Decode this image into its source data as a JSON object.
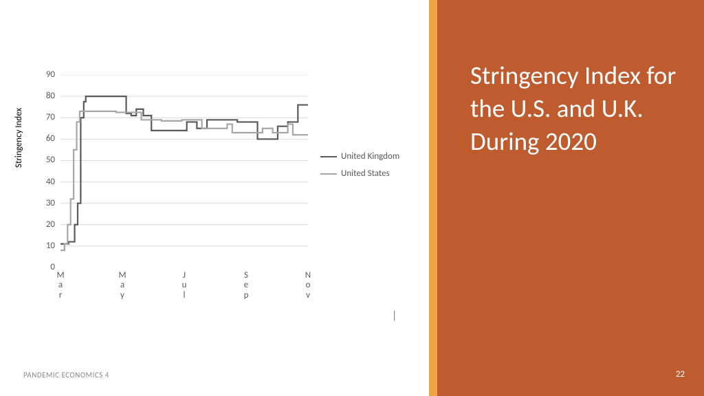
{
  "title": "Stringency Index for the U.S. and U.K. During 2020",
  "footer_left": "PANDEMIC ECONOMICS 4",
  "page_number": "22",
  "accent_color": "#f0a441",
  "panel_color": "#be5b2f",
  "footer_text_color": "#8a8a8a",
  "chart": {
    "type": "line-step",
    "y_axis_label": "Stringency Index",
    "background_color": "#ffffff",
    "grid_color": "#d9d9d9",
    "tick_color": "#595959",
    "tick_fontsize": 13,
    "label_fontsize": 13,
    "ylim": [
      0,
      90
    ],
    "ytick_step": 10,
    "y_ticks": [
      "0",
      "10",
      "20",
      "30",
      "40",
      "50",
      "60",
      "70",
      "80",
      "90"
    ],
    "x_labels": [
      "Mar",
      "May",
      "Jul",
      "Sep",
      "Nov"
    ],
    "x_min": 0,
    "x_max": 245,
    "line_width": 2.2,
    "series": [
      {
        "name": "United Kingdom",
        "color": "#595959",
        "points": [
          [
            0,
            11
          ],
          [
            8,
            11
          ],
          [
            8,
            12
          ],
          [
            14,
            12
          ],
          [
            14,
            20
          ],
          [
            17,
            20
          ],
          [
            17,
            30
          ],
          [
            20,
            30
          ],
          [
            20,
            70
          ],
          [
            23,
            70
          ],
          [
            23,
            77.5
          ],
          [
            25,
            77.5
          ],
          [
            25,
            80
          ],
          [
            65,
            80
          ],
          [
            65,
            72
          ],
          [
            70,
            72
          ],
          [
            70,
            71
          ],
          [
            75,
            71
          ],
          [
            75,
            74
          ],
          [
            82,
            74
          ],
          [
            82,
            71
          ],
          [
            90,
            71
          ],
          [
            90,
            64
          ],
          [
            125,
            64
          ],
          [
            125,
            68
          ],
          [
            135,
            68
          ],
          [
            135,
            65
          ],
          [
            145,
            65
          ],
          [
            145,
            69
          ],
          [
            175,
            69
          ],
          [
            175,
            68
          ],
          [
            195,
            68
          ],
          [
            195,
            60
          ],
          [
            215,
            60
          ],
          [
            215,
            66
          ],
          [
            225,
            66
          ],
          [
            225,
            68
          ],
          [
            235,
            68
          ],
          [
            235,
            76
          ],
          [
            245,
            76
          ]
        ]
      },
      {
        "name": "United States",
        "color": "#a6a6a6",
        "points": [
          [
            0,
            8
          ],
          [
            4,
            8
          ],
          [
            4,
            11
          ],
          [
            7,
            11
          ],
          [
            7,
            20
          ],
          [
            10,
            20
          ],
          [
            10,
            32
          ],
          [
            13,
            32
          ],
          [
            13,
            55
          ],
          [
            16,
            55
          ],
          [
            16,
            68
          ],
          [
            19,
            68
          ],
          [
            19,
            73
          ],
          [
            55,
            73
          ],
          [
            55,
            72.5
          ],
          [
            80,
            72.5
          ],
          [
            80,
            69
          ],
          [
            100,
            69
          ],
          [
            100,
            68.5
          ],
          [
            120,
            68.5
          ],
          [
            120,
            69
          ],
          [
            140,
            69
          ],
          [
            140,
            65
          ],
          [
            165,
            65
          ],
          [
            165,
            67
          ],
          [
            170,
            67
          ],
          [
            170,
            63
          ],
          [
            200,
            63
          ],
          [
            200,
            65
          ],
          [
            210,
            65
          ],
          [
            210,
            63
          ],
          [
            225,
            63
          ],
          [
            225,
            67
          ],
          [
            230,
            67
          ],
          [
            230,
            62
          ],
          [
            245,
            62
          ]
        ]
      }
    ],
    "legend": {
      "items": [
        "United Kingdom",
        "United States"
      ]
    }
  }
}
